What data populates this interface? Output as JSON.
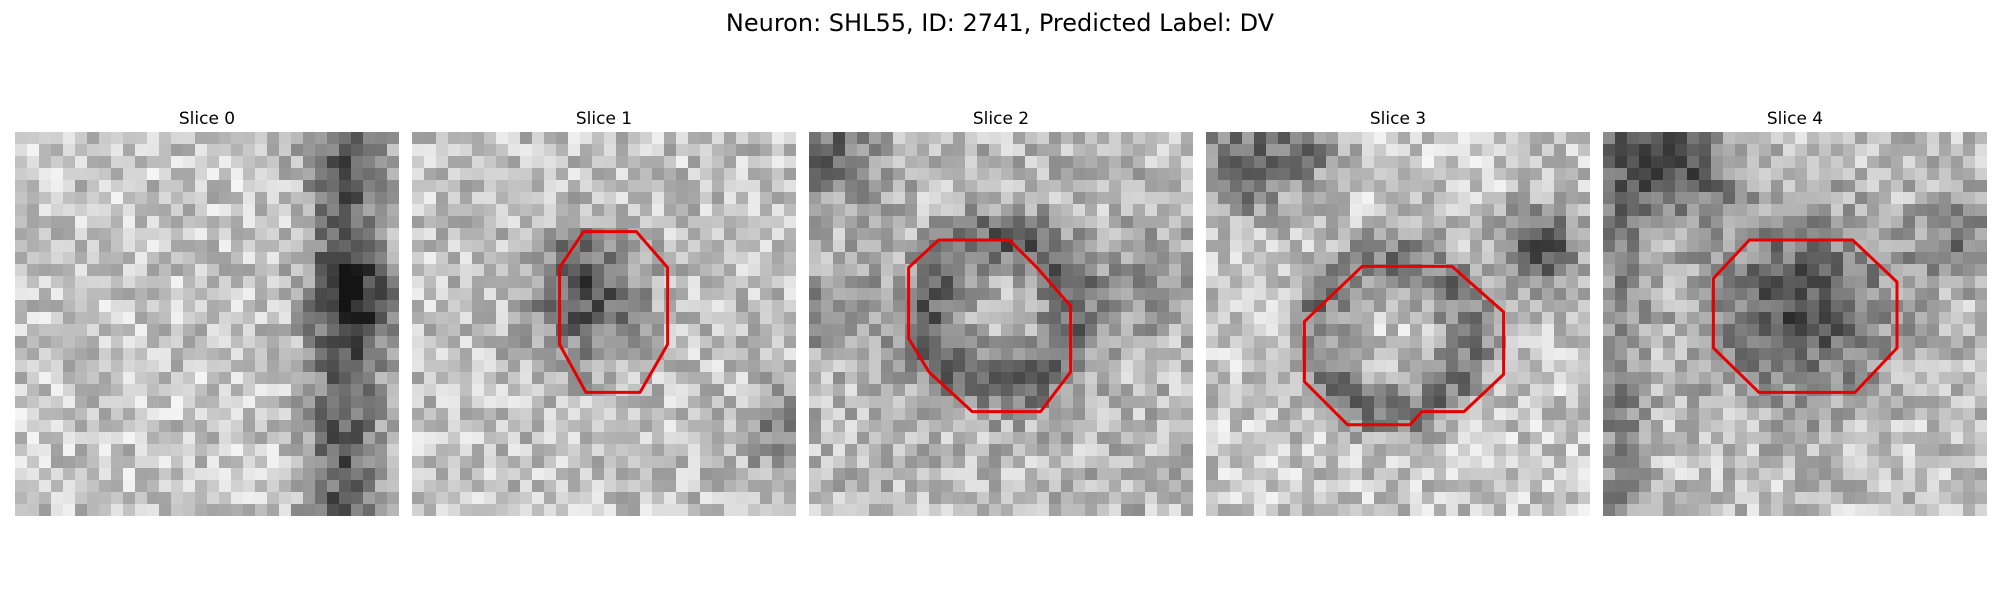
{
  "figure": {
    "suptitle": "Neuron: SHL55, ID: 2741, Predicted Label: DV",
    "contour_color": "#e60000",
    "colormap": "grayscale"
  },
  "panels": [
    {
      "title": "Slice 0",
      "has_contour": false
    },
    {
      "title": "Slice 1",
      "has_contour": true
    },
    {
      "title": "Slice 2",
      "has_contour": true
    },
    {
      "title": "Slice 3",
      "has_contour": true
    },
    {
      "title": "Slice 4",
      "has_contour": true
    }
  ]
}
